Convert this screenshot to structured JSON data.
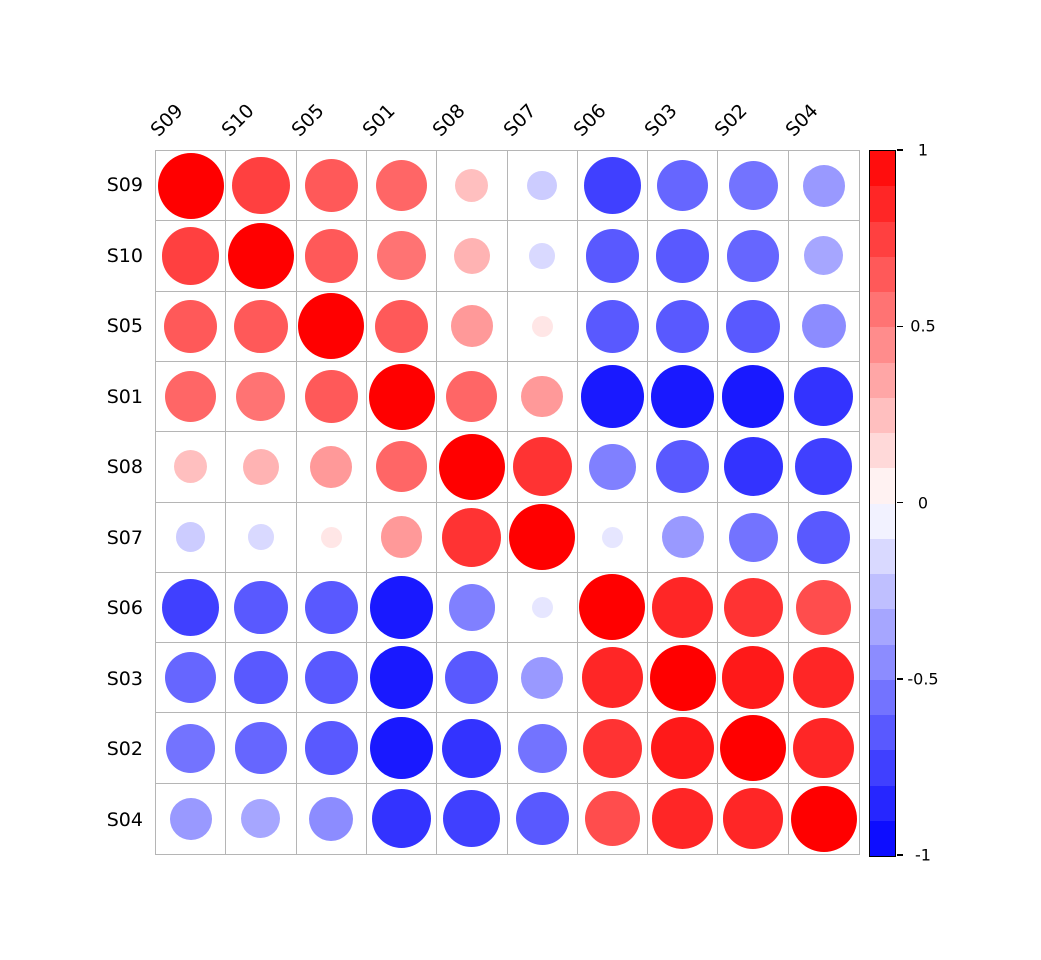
{
  "figure": {
    "background": "#ffffff",
    "grid_color": "#b5b5b5",
    "accent_positive": "#ff0000",
    "accent_negative": "#0000ff",
    "accent_zero": "#ffffff"
  },
  "chart_data": {
    "type": "heatmap",
    "subtype": "correlation-bubble-matrix",
    "title": "",
    "xlabel": "",
    "ylabel": "",
    "legend_position": "right-colorbar",
    "grid": true,
    "value_range": [
      -1,
      1
    ],
    "encoding": "circle area and red-white-blue color encode correlation value",
    "labels": [
      "S09",
      "S10",
      "S05",
      "S01",
      "S08",
      "S07",
      "S06",
      "S03",
      "S02",
      "S04"
    ],
    "matrix": [
      [
        1.0,
        0.75,
        0.65,
        0.6,
        0.25,
        -0.2,
        -0.75,
        -0.6,
        -0.55,
        -0.4
      ],
      [
        0.75,
        1.0,
        0.65,
        0.55,
        0.3,
        -0.15,
        -0.65,
        -0.65,
        -0.6,
        -0.35
      ],
      [
        0.65,
        0.65,
        1.0,
        0.65,
        0.4,
        0.1,
        -0.65,
        -0.65,
        -0.65,
        -0.45
      ],
      [
        0.6,
        0.55,
        0.65,
        1.0,
        0.6,
        0.4,
        -0.9,
        -0.9,
        -0.9,
        -0.8
      ],
      [
        0.25,
        0.3,
        0.4,
        0.6,
        1.0,
        0.8,
        -0.5,
        -0.65,
        -0.8,
        -0.75
      ],
      [
        -0.2,
        -0.15,
        0.1,
        0.4,
        0.8,
        1.0,
        -0.1,
        -0.4,
        -0.55,
        -0.65
      ],
      [
        -0.75,
        -0.65,
        -0.65,
        -0.9,
        -0.5,
        -0.1,
        1.0,
        0.85,
        0.8,
        0.7
      ],
      [
        -0.6,
        -0.65,
        -0.65,
        -0.9,
        -0.65,
        -0.4,
        0.85,
        1.0,
        0.9,
        0.85
      ],
      [
        -0.55,
        -0.6,
        -0.65,
        -0.9,
        -0.8,
        -0.55,
        0.8,
        0.9,
        1.0,
        0.85
      ],
      [
        -0.4,
        -0.35,
        -0.45,
        -0.8,
        -0.75,
        -0.65,
        0.7,
        0.85,
        0.85,
        1.0
      ]
    ],
    "colorbar": {
      "min": -1,
      "max": 1,
      "steps": 20,
      "tick_labels": [
        "1",
        "0.5",
        "0",
        "-0.5",
        "-1"
      ],
      "tick_values": [
        1,
        0.5,
        0,
        -0.5,
        -1
      ]
    }
  }
}
